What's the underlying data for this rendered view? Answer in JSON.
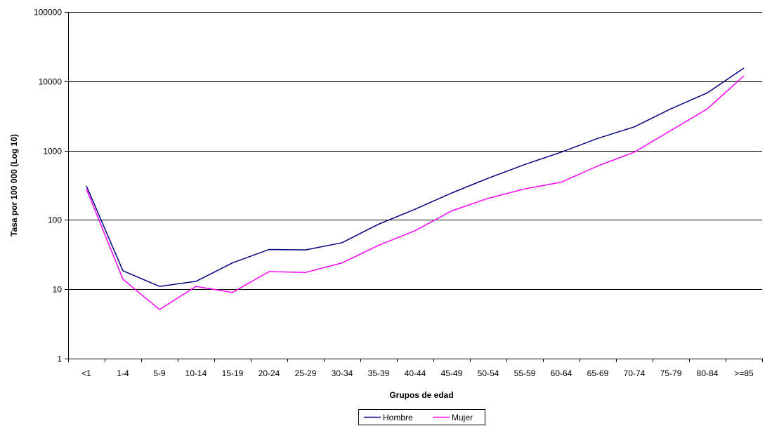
{
  "chart_data": {
    "type": "line",
    "title": "",
    "xlabel": "Grupos de edad",
    "ylabel": "Tasa por 100 000 (Log 10)",
    "yscale": "log10",
    "ylim": [
      1,
      100000
    ],
    "yticks": [
      1,
      10,
      100,
      1000,
      10000,
      100000
    ],
    "ytick_labels": [
      "1",
      "10",
      "100",
      "1000",
      "10000",
      "100000"
    ],
    "grid": "horizontal",
    "legend_position": "bottom",
    "categories": [
      "<1",
      "1-4",
      "5-9",
      "10-14",
      "15-19",
      "20-24",
      "25-29",
      "30-34",
      "35-39",
      "40-44",
      "45-49",
      "50-54",
      "55-59",
      "60-64",
      "65-69",
      "70-74",
      "75-79",
      "80-84",
      ">=85"
    ],
    "series": [
      {
        "name": "Hombre",
        "color": "#000080",
        "values": [
          310,
          18.5,
          11,
          13,
          24,
          37.5,
          37,
          47,
          87,
          143,
          245,
          400,
          630,
          950,
          1500,
          2200,
          4000,
          6800,
          15500
        ]
      },
      {
        "name": "Mujer",
        "color": "#ff00ff",
        "values": [
          280,
          14,
          5.1,
          11,
          9,
          18,
          17.5,
          24,
          43,
          70,
          135,
          205,
          280,
          350,
          600,
          950,
          1950,
          4000,
          12000
        ]
      }
    ]
  }
}
